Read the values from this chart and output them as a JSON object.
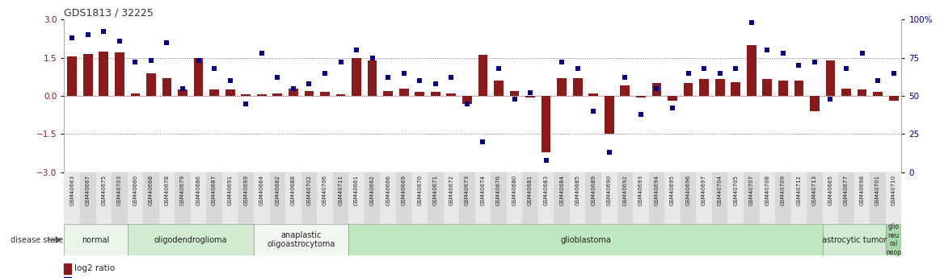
{
  "title": "GDS1813 / 32225",
  "samples": [
    "GSM40663",
    "GSM40667",
    "GSM40675",
    "GSM40703",
    "GSM40660",
    "GSM40668",
    "GSM40678",
    "GSM40679",
    "GSM40686",
    "GSM40687",
    "GSM40691",
    "GSM40699",
    "GSM40664",
    "GSM40682",
    "GSM40688",
    "GSM40702",
    "GSM40706",
    "GSM40711",
    "GSM40661",
    "GSM40662",
    "GSM40666",
    "GSM40669",
    "GSM40670",
    "GSM40671",
    "GSM40672",
    "GSM40673",
    "GSM40674",
    "GSM40676",
    "GSM40680",
    "GSM40681",
    "GSM40683",
    "GSM40684",
    "GSM40685",
    "GSM40689",
    "GSM40690",
    "GSM40692",
    "GSM40693",
    "GSM40694",
    "GSM40695",
    "GSM40696",
    "GSM40697",
    "GSM40704",
    "GSM40705",
    "GSM40707",
    "GSM40708",
    "GSM40709",
    "GSM40712",
    "GSM40713",
    "GSM40665",
    "GSM40677",
    "GSM40698",
    "GSM40701",
    "GSM40710"
  ],
  "log2_ratio": [
    1.55,
    1.65,
    1.75,
    1.7,
    0.1,
    0.9,
    0.7,
    0.25,
    1.5,
    0.25,
    0.25,
    0.05,
    0.05,
    0.1,
    0.3,
    0.2,
    0.15,
    0.05,
    1.5,
    1.4,
    0.2,
    0.3,
    0.15,
    0.15,
    0.1,
    -0.3,
    1.6,
    0.6,
    0.2,
    -0.05,
    -2.2,
    0.7,
    0.7,
    0.1,
    -1.5,
    0.4,
    -0.05,
    0.5,
    -0.2,
    0.5,
    0.65,
    0.65,
    0.55,
    2.0,
    0.65,
    0.6,
    0.6,
    -0.6,
    1.4,
    0.3,
    0.25,
    0.15,
    -0.2
  ],
  "percentile": [
    88,
    90,
    92,
    86,
    72,
    73,
    85,
    55,
    73,
    68,
    60,
    45,
    78,
    62,
    55,
    58,
    65,
    72,
    80,
    75,
    62,
    65,
    60,
    58,
    62,
    45,
    20,
    68,
    48,
    52,
    8,
    72,
    68,
    40,
    13,
    62,
    38,
    55,
    42,
    65,
    68,
    65,
    68,
    98,
    80,
    78,
    70,
    72,
    48,
    68,
    78,
    60,
    65
  ],
  "disease_groups": [
    {
      "label": "normal",
      "start": 0,
      "end": 4,
      "color": "#e8f5e8"
    },
    {
      "label": "oligodendroglioma",
      "start": 4,
      "end": 12,
      "color": "#d0ebd0"
    },
    {
      "label": "anaplastic\noligoastrocytoma",
      "start": 12,
      "end": 18,
      "color": "#f0f8f0"
    },
    {
      "label": "glioblastoma",
      "start": 18,
      "end": 48,
      "color": "#c0e8c0"
    },
    {
      "label": "astrocytic tumor",
      "start": 48,
      "end": 52,
      "color": "#d0ebd0"
    },
    {
      "label": "glio\nneu\nral\nneop",
      "start": 52,
      "end": 53,
      "color": "#a8d8a8"
    }
  ],
  "ylim_left": [
    -3,
    3
  ],
  "ylim_right": [
    0,
    100
  ],
  "bar_color": "#8B1A1A",
  "dot_color": "#00008B",
  "bg_color": "#ffffff",
  "left_yticks": [
    -3,
    -1.5,
    0,
    1.5,
    3
  ],
  "right_yticks": [
    0,
    25,
    50,
    75,
    100
  ],
  "right_yticklabels": [
    "0",
    "25",
    "50",
    "75",
    "100%"
  ]
}
